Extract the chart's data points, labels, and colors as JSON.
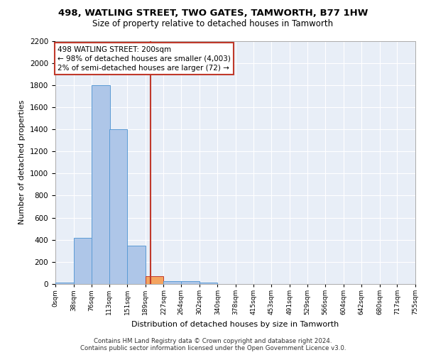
{
  "title1": "498, WATLING STREET, TWO GATES, TAMWORTH, B77 1HW",
  "title2": "Size of property relative to detached houses in Tamworth",
  "xlabel": "Distribution of detached houses by size in Tamworth",
  "ylabel": "Number of detached properties",
  "footer1": "Contains HM Land Registry data © Crown copyright and database right 2024.",
  "footer2": "Contains public sector information licensed under the Open Government Licence v3.0.",
  "bin_labels": [
    "0sqm",
    "38sqm",
    "76sqm",
    "113sqm",
    "151sqm",
    "189sqm",
    "227sqm",
    "264sqm",
    "302sqm",
    "340sqm",
    "378sqm",
    "415sqm",
    "453sqm",
    "491sqm",
    "529sqm",
    "566sqm",
    "604sqm",
    "642sqm",
    "680sqm",
    "717sqm",
    "755sqm"
  ],
  "bin_edges": [
    0,
    38,
    76,
    113,
    151,
    189,
    227,
    264,
    302,
    340,
    378,
    415,
    453,
    491,
    529,
    566,
    604,
    642,
    680,
    717,
    755
  ],
  "bar_heights": [
    10,
    420,
    1800,
    1400,
    350,
    70,
    25,
    25,
    10,
    0,
    0,
    0,
    0,
    0,
    0,
    0,
    0,
    0,
    0,
    0
  ],
  "bar_color": "#aec6e8",
  "bar_edge_color": "#5b9bd5",
  "highlight_bar_index": 5,
  "highlight_bar_color": "#f4a460",
  "highlight_bar_edge_color": "#c0392b",
  "vline_x": 200,
  "vline_color": "#c0392b",
  "ylim": [
    0,
    2200
  ],
  "yticks": [
    0,
    200,
    400,
    600,
    800,
    1000,
    1200,
    1400,
    1600,
    1800,
    2000,
    2200
  ],
  "annotation_line1": "498 WATLING STREET: 200sqm",
  "annotation_line2": "← 98% of detached houses are smaller (4,003)",
  "annotation_line3": "2% of semi-detached houses are larger (72) →",
  "annotation_box_color": "#ffffff",
  "annotation_box_edge_color": "#c0392b",
  "bg_color": "#e8eef7",
  "plot_bg_color": "#e8eef7",
  "title1_fontsize": 9.5,
  "title2_fontsize": 8.5
}
